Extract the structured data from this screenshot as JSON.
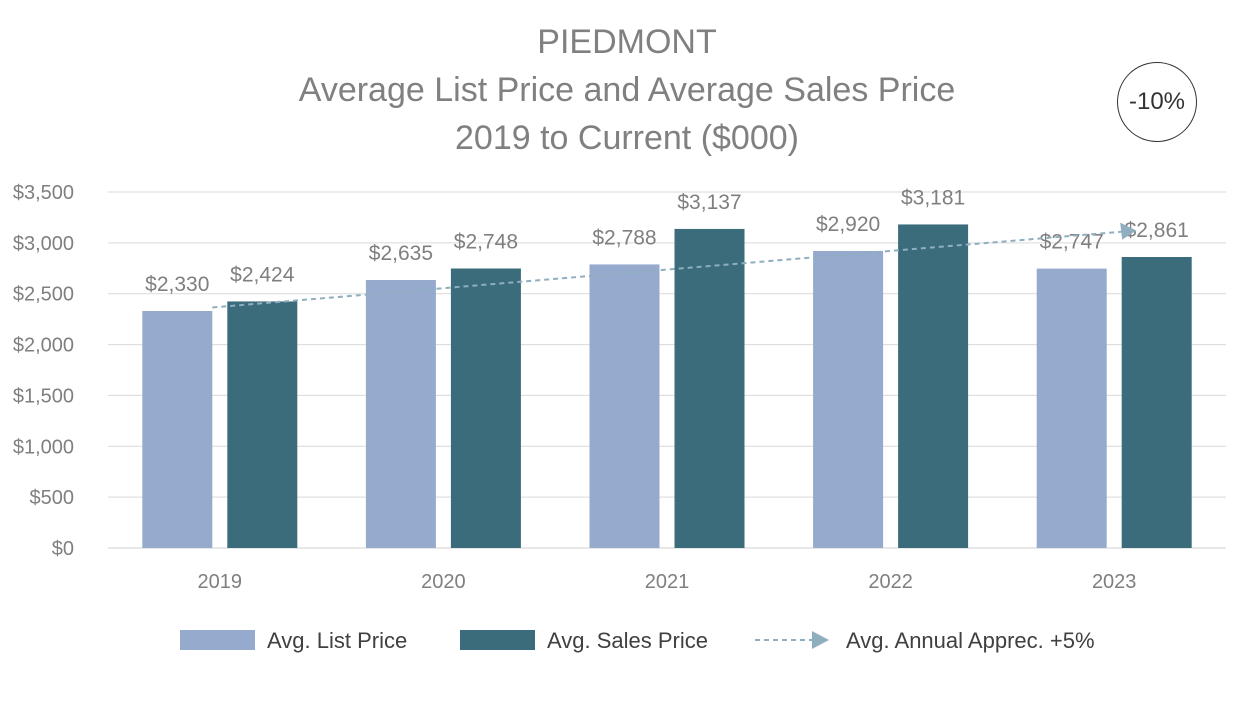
{
  "chart_data": {
    "type": "bar",
    "title": "PIEDMONT",
    "subtitle": "Average List Price and Average Sales Price",
    "subtitle2": "2019 to Current ($000)",
    "badge": "-10%",
    "categories": [
      "2019",
      "2020",
      "2021",
      "2022",
      "2023"
    ],
    "series": [
      {
        "name": "Avg. List Price",
        "color": "#95AACD",
        "values": [
          2330,
          2635,
          2788,
          2920,
          2747
        ],
        "labels": [
          "$2,330",
          "$2,635",
          "$2,788",
          "$2,920",
          "$2,747"
        ]
      },
      {
        "name": "Avg. Sales Price",
        "color": "#3B6C7B",
        "values": [
          2424,
          2748,
          3137,
          3181,
          2861
        ],
        "labels": [
          "$2,424",
          "$2,748",
          "$3,137",
          "$3,181",
          "$2,861"
        ]
      }
    ],
    "trend": {
      "name": "Avg. Annual Apprec. +5%",
      "color": "#8FAEC0",
      "start": 2424,
      "end": 3120
    },
    "ylim": [
      0,
      3500
    ],
    "yticks": [
      0,
      500,
      1000,
      1500,
      2000,
      2500,
      3000,
      3500
    ],
    "ytick_labels": [
      "$0",
      "$500",
      "$1,000",
      "$1,500",
      "$2,000",
      "$2,500",
      "$3,000",
      "$3,500"
    ],
    "grid": true,
    "legend": "bottom"
  }
}
